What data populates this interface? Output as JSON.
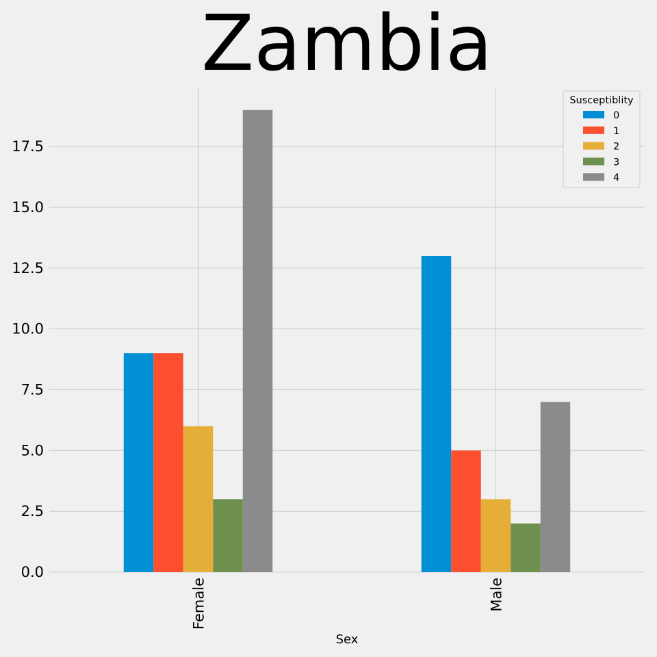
{
  "chart_data": {
    "type": "bar",
    "title": "Zambia",
    "xlabel": "Sex",
    "ylabel": "",
    "categories": [
      "Female",
      "Male"
    ],
    "ylim": [
      0,
      19.95
    ],
    "yticks": [
      0.0,
      2.5,
      5.0,
      7.5,
      10.0,
      12.5,
      15.0,
      17.5
    ],
    "ytick_labels": [
      "0.0",
      "2.5",
      "5.0",
      "7.5",
      "10.0",
      "12.5",
      "15.0",
      "17.5"
    ],
    "grid": true,
    "legend": {
      "title": "Susceptiblity",
      "position": "top-right"
    },
    "series": [
      {
        "name": "0",
        "color": "#008fd5",
        "values": [
          9,
          13
        ]
      },
      {
        "name": "1",
        "color": "#fc4f30",
        "values": [
          9,
          5
        ]
      },
      {
        "name": "2",
        "color": "#e5ae38",
        "values": [
          6,
          3
        ]
      },
      {
        "name": "3",
        "color": "#6d904f",
        "values": [
          3,
          2
        ]
      },
      {
        "name": "4",
        "color": "#8b8b8b",
        "values": [
          19,
          7
        ]
      }
    ]
  }
}
